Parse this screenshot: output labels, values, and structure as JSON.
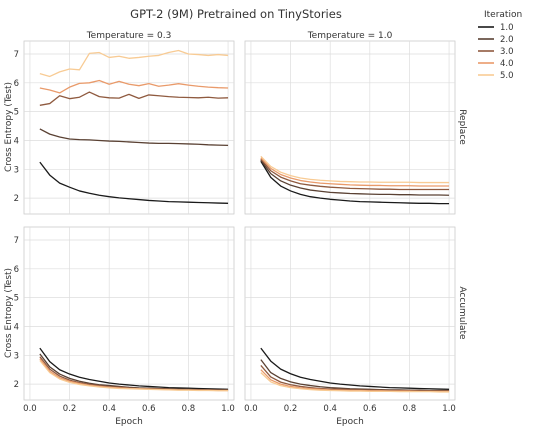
{
  "chart_data": {
    "type": "line",
    "title": "GPT-2 (9M) Pretrained on TinyStories",
    "xlabel": "Epoch",
    "ylabel": "Cross Entropy (Test)",
    "xlim": [
      -0.03,
      1.03
    ],
    "ylim": [
      1.45,
      7.45
    ],
    "xticks": [
      "0.0",
      "0.2",
      "0.4",
      "0.6",
      "0.8",
      "1.0"
    ],
    "yticks": [
      "2",
      "3",
      "4",
      "5",
      "6",
      "7"
    ],
    "grid": true,
    "legend": {
      "title": "Iteration",
      "placement": "top-right outside",
      "entries": [
        "1.0",
        "2.0",
        "3.0",
        "4.0",
        "5.0"
      ]
    },
    "colors": {
      "1.0": "#1a1a1a",
      "2.0": "#5a4133",
      "3.0": "#8f5a3f",
      "4.0": "#e99a6a",
      "5.0": "#f8cb94",
      "grid": "#dddddd",
      "spine": "#cccccc"
    },
    "column_titles": [
      "Temperature = 0.3",
      "Temperature = 1.0"
    ],
    "row_titles": [
      "Replace",
      "Accumulate"
    ],
    "x": [
      0.05,
      0.1,
      0.15,
      0.2,
      0.25,
      0.3,
      0.35,
      0.4,
      0.45,
      0.5,
      0.55,
      0.6,
      0.65,
      0.7,
      0.75,
      0.8,
      0.85,
      0.9,
      0.95,
      1.0
    ],
    "panels": [
      {
        "row": "Replace",
        "column": "Temperature = 0.3",
        "series": [
          {
            "name": "1.0",
            "values": [
              3.25,
              2.8,
              2.52,
              2.38,
              2.25,
              2.17,
              2.1,
              2.05,
              2.01,
              1.98,
              1.95,
              1.92,
              1.9,
              1.88,
              1.87,
              1.86,
              1.85,
              1.84,
              1.83,
              1.82
            ]
          },
          {
            "name": "2.0",
            "values": [
              4.4,
              4.22,
              4.12,
              4.05,
              4.03,
              4.02,
              4.0,
              3.98,
              3.97,
              3.95,
              3.93,
              3.91,
              3.9,
              3.9,
              3.89,
              3.88,
              3.87,
              3.85,
              3.84,
              3.83
            ]
          },
          {
            "name": "3.0",
            "values": [
              5.22,
              5.28,
              5.55,
              5.45,
              5.5,
              5.68,
              5.52,
              5.48,
              5.47,
              5.6,
              5.46,
              5.58,
              5.55,
              5.52,
              5.5,
              5.49,
              5.48,
              5.5,
              5.47,
              5.48
            ]
          },
          {
            "name": "4.0",
            "values": [
              5.82,
              5.75,
              5.65,
              5.85,
              5.98,
              6.0,
              6.08,
              5.95,
              6.05,
              5.95,
              5.9,
              5.97,
              5.88,
              5.92,
              5.97,
              5.92,
              5.88,
              5.85,
              5.83,
              5.82
            ]
          },
          {
            "name": "5.0",
            "values": [
              6.32,
              6.22,
              6.38,
              6.48,
              6.45,
              7.02,
              7.05,
              6.88,
              6.92,
              6.85,
              6.88,
              6.92,
              6.95,
              7.05,
              7.12,
              7.0,
              6.98,
              6.95,
              6.98,
              6.95
            ]
          }
        ]
      },
      {
        "row": "Replace",
        "column": "Temperature = 1.0",
        "series": [
          {
            "name": "1.0",
            "values": [
              3.28,
              2.72,
              2.42,
              2.25,
              2.13,
              2.05,
              2.0,
              1.96,
              1.93,
              1.9,
              1.88,
              1.87,
              1.86,
              1.85,
              1.84,
              1.83,
              1.82,
              1.82,
              1.81,
              1.81
            ]
          },
          {
            "name": "2.0",
            "values": [
              3.32,
              2.85,
              2.6,
              2.45,
              2.35,
              2.28,
              2.24,
              2.2,
              2.18,
              2.16,
              2.15,
              2.14,
              2.13,
              2.13,
              2.12,
              2.12,
              2.11,
              2.11,
              2.11,
              2.1
            ]
          },
          {
            "name": "3.0",
            "values": [
              3.36,
              2.95,
              2.73,
              2.6,
              2.5,
              2.45,
              2.41,
              2.38,
              2.36,
              2.34,
              2.33,
              2.32,
              2.31,
              2.31,
              2.3,
              2.3,
              2.3,
              2.3,
              2.3,
              2.3
            ]
          },
          {
            "name": "4.0",
            "values": [
              3.4,
              3.03,
              2.82,
              2.7,
              2.61,
              2.56,
              2.52,
              2.5,
              2.48,
              2.46,
              2.45,
              2.44,
              2.44,
              2.43,
              2.43,
              2.43,
              2.42,
              2.42,
              2.42,
              2.42
            ]
          },
          {
            "name": "5.0",
            "values": [
              3.45,
              3.1,
              2.9,
              2.78,
              2.7,
              2.65,
              2.62,
              2.6,
              2.58,
              2.57,
              2.56,
              2.56,
              2.55,
              2.55,
              2.55,
              2.55,
              2.54,
              2.54,
              2.54,
              2.54
            ]
          }
        ]
      },
      {
        "row": "Accumulate",
        "column": "Temperature = 0.3",
        "series": [
          {
            "name": "1.0",
            "values": [
              3.25,
              2.78,
              2.5,
              2.35,
              2.24,
              2.16,
              2.1,
              2.04,
              2.0,
              1.97,
              1.94,
              1.92,
              1.9,
              1.88,
              1.87,
              1.86,
              1.85,
              1.84,
              1.83,
              1.82
            ]
          },
          {
            "name": "2.0",
            "values": [
              3.05,
              2.6,
              2.35,
              2.2,
              2.1,
              2.03,
              1.98,
              1.95,
              1.92,
              1.89,
              1.87,
              1.86,
              1.85,
              1.84,
              1.83,
              1.82,
              1.81,
              1.81,
              1.8,
              1.8
            ]
          },
          {
            "name": "3.0",
            "values": [
              2.95,
              2.52,
              2.28,
              2.14,
              2.05,
              1.99,
              1.95,
              1.91,
              1.89,
              1.87,
              1.85,
              1.84,
              1.83,
              1.82,
              1.81,
              1.8,
              1.8,
              1.79,
              1.79,
              1.79
            ]
          },
          {
            "name": "4.0",
            "values": [
              2.88,
              2.45,
              2.22,
              2.1,
              2.02,
              1.96,
              1.92,
              1.89,
              1.87,
              1.85,
              1.84,
              1.83,
              1.82,
              1.81,
              1.8,
              1.8,
              1.79,
              1.79,
              1.78,
              1.78
            ]
          },
          {
            "name": "5.0",
            "values": [
              2.82,
              2.4,
              2.18,
              2.06,
              1.99,
              1.94,
              1.9,
              1.87,
              1.85,
              1.84,
              1.83,
              1.82,
              1.81,
              1.8,
              1.79,
              1.79,
              1.78,
              1.78,
              1.77,
              1.77
            ]
          }
        ]
      },
      {
        "row": "Accumulate",
        "column": "Temperature = 1.0",
        "series": [
          {
            "name": "1.0",
            "values": [
              3.25,
              2.8,
              2.52,
              2.36,
              2.24,
              2.16,
              2.1,
              2.04,
              2.0,
              1.97,
              1.94,
              1.92,
              1.9,
              1.88,
              1.87,
              1.86,
              1.85,
              1.84,
              1.83,
              1.82
            ]
          },
          {
            "name": "2.0",
            "values": [
              2.85,
              2.4,
              2.2,
              2.08,
              2.0,
              1.95,
              1.91,
              1.88,
              1.86,
              1.84,
              1.83,
              1.82,
              1.81,
              1.8,
              1.8,
              1.79,
              1.79,
              1.78,
              1.78,
              1.78
            ]
          },
          {
            "name": "3.0",
            "values": [
              2.65,
              2.25,
              2.07,
              1.98,
              1.92,
              1.88,
              1.85,
              1.83,
              1.82,
              1.81,
              1.8,
              1.79,
              1.79,
              1.78,
              1.78,
              1.77,
              1.77,
              1.77,
              1.76,
              1.76
            ]
          },
          {
            "name": "4.0",
            "values": [
              2.5,
              2.15,
              2.0,
              1.92,
              1.87,
              1.84,
              1.82,
              1.8,
              1.79,
              1.78,
              1.78,
              1.77,
              1.77,
              1.76,
              1.76,
              1.76,
              1.75,
              1.75,
              1.75,
              1.75
            ]
          },
          {
            "name": "5.0",
            "values": [
              2.4,
              2.08,
              1.95,
              1.88,
              1.84,
              1.81,
              1.79,
              1.78,
              1.77,
              1.76,
              1.76,
              1.75,
              1.75,
              1.75,
              1.74,
              1.74,
              1.74,
              1.74,
              1.73,
              1.73
            ]
          }
        ]
      }
    ]
  }
}
